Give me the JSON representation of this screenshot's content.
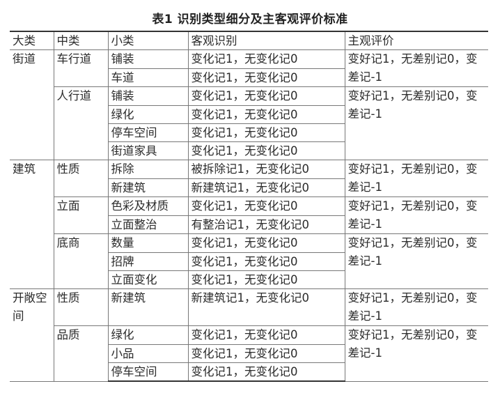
{
  "title": "表1  识别类型细分及主客观评价标准",
  "headers": [
    "大类",
    "中类",
    "小类",
    "客观识别",
    "主观评价"
  ],
  "categories": [
    {
      "name": "街道",
      "subgroups": [
        {
          "name": "车行道",
          "subjective": "变好记1，无差别记0，变差记-1",
          "items": [
            {
              "name": "铺装",
              "objective": "变化记1，无变化记0"
            },
            {
              "name": "车道",
              "objective": "变化记1，无变化记0"
            }
          ]
        },
        {
          "name": "人行道",
          "subjective": "变好记1，无差别记0，变差记-1",
          "items": [
            {
              "name": "铺装",
              "objective": "变化记1，无变化记0"
            },
            {
              "name": "绿化",
              "objective": "变化记1，无变化记0"
            },
            {
              "name": "停车空间",
              "objective": "变化记1，无变化记0"
            },
            {
              "name": "街道家具",
              "objective": "变化记1，无变化记0"
            }
          ]
        }
      ]
    },
    {
      "name": "建筑",
      "subgroups": [
        {
          "name": "性质",
          "subjective": "变好记1，无差别记0，变差记-1",
          "items": [
            {
              "name": "拆除",
              "objective": "被拆除记1，无变化记0"
            },
            {
              "name": "新建筑",
              "objective": "新建筑记1，无变化记0"
            }
          ]
        },
        {
          "name": "立面",
          "subjective": "变好记1，无差别记0，变差记-1",
          "items": [
            {
              "name": "色彩及材质",
              "objective": "变化记1，无变化记0"
            },
            {
              "name": "立面整治",
              "objective": "有整治记1，无变化记0"
            }
          ]
        },
        {
          "name": "底商",
          "subjective": "变好记1，无差别记0，变差记-1",
          "items": [
            {
              "name": "数量",
              "objective": "变化记1，无变化记0"
            },
            {
              "name": "招牌",
              "objective": "变化记1，无变化记0"
            },
            {
              "name": "立面变化",
              "objective": "变化记1，无变化记0"
            }
          ]
        }
      ]
    },
    {
      "name": "开敞空间",
      "subgroups": [
        {
          "name": "性质",
          "subjective": "变好记1，无差别记0，变差记-1",
          "items": [
            {
              "name": "新建筑",
              "objective": "新建筑记1，无变化记0"
            }
          ]
        },
        {
          "name": "品质",
          "subjective": "变好记1，无差别记0，变差记-1",
          "items": [
            {
              "name": "绿化",
              "objective": "变化记1，无变化记0"
            },
            {
              "name": "小品",
              "objective": "变化记1，无变化记0"
            },
            {
              "name": "停车空间",
              "objective": "变化记1，无变化记0"
            }
          ]
        }
      ]
    }
  ]
}
